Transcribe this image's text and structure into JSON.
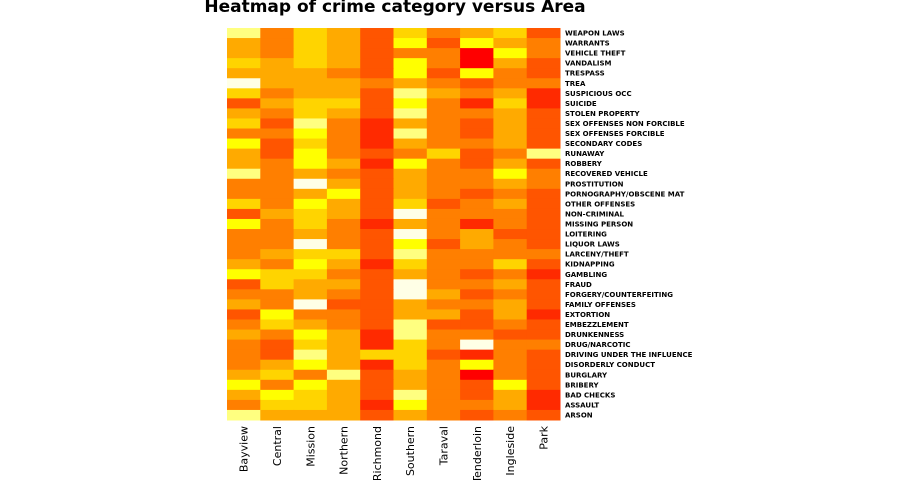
{
  "chart_data": {
    "type": "heatmap",
    "title": "Heatmap of crime category versus Area",
    "xlabel": "",
    "ylabel": "",
    "color_scale": "heat (red = low, yellow/white = high)",
    "colors": [
      "#ff0000",
      "#ff2a00",
      "#ff5500",
      "#ff7f00",
      "#ffaa00",
      "#ffd400",
      "#ffff00",
      "#ffff80",
      "#ffffe6"
    ],
    "columns": [
      "Bayview",
      "Central",
      "Mission",
      "Northern",
      "Richmond",
      "Southern",
      "Taraval",
      "Tenderloin",
      "Ingleside",
      "Park"
    ],
    "rows": [
      "WEAPON LAWS",
      "WARRANTS",
      "VEHICLE THEFT",
      "VANDALISM",
      "TRESPASS",
      "TREA",
      "SUSPICIOUS OCC",
      "SUICIDE",
      "STOLEN PROPERTY",
      "SEX OFFENSES NON FORCIBLE",
      "SEX OFFENSES FORCIBLE",
      "SECONDARY CODES",
      "RUNAWAY",
      "ROBBERY",
      "RECOVERED VEHICLE",
      "PROSTITUTION",
      "PORNOGRAPHY/OBSCENE MAT",
      "OTHER OFFENSES",
      "NON-CRIMINAL",
      "MISSING PERSON",
      "LOITERING",
      "LIQUOR LAWS",
      "LARCENY/THEFT",
      "KIDNAPPING",
      "GAMBLING",
      "FRAUD",
      "FORGERY/COUNTERFEITING",
      "FAMILY OFFENSES",
      "EXTORTION",
      "EMBEZZLEMENT",
      "DRUNKENNESS",
      "DRUG/NARCOTIC",
      "DRIVING UNDER THE INFLUENCE",
      "DISORDERLY CONDUCT",
      "BURGLARY",
      "BRIBERY",
      "BAD CHECKS",
      "ASSAULT",
      "ARSON"
    ],
    "values": [
      [
        7,
        3,
        5,
        4,
        2,
        5,
        3,
        4,
        5,
        2
      ],
      [
        4,
        3,
        5,
        4,
        2,
        6,
        2,
        6,
        4,
        3
      ],
      [
        4,
        3,
        5,
        4,
        2,
        3,
        3,
        0,
        6,
        3
      ],
      [
        5,
        4,
        5,
        4,
        2,
        6,
        3,
        0,
        4,
        2
      ],
      [
        4,
        4,
        4,
        3,
        2,
        6,
        2,
        6,
        3,
        2
      ],
      [
        8,
        4,
        4,
        4,
        3,
        4,
        3,
        2,
        3,
        3
      ],
      [
        5,
        3,
        4,
        4,
        2,
        7,
        4,
        3,
        4,
        1
      ],
      [
        2,
        4,
        5,
        5,
        2,
        6,
        3,
        1,
        5,
        1
      ],
      [
        4,
        3,
        5,
        4,
        2,
        7,
        3,
        3,
        4,
        2
      ],
      [
        5,
        2,
        7,
        3,
        1,
        4,
        3,
        2,
        4,
        2
      ],
      [
        3,
        3,
        6,
        3,
        1,
        7,
        3,
        2,
        4,
        2
      ],
      [
        6,
        2,
        5,
        3,
        1,
        4,
        3,
        3,
        4,
        2
      ],
      [
        4,
        2,
        6,
        3,
        2,
        3,
        5,
        2,
        3,
        7
      ],
      [
        4,
        3,
        6,
        4,
        1,
        6,
        3,
        2,
        4,
        2
      ],
      [
        7,
        3,
        4,
        3,
        2,
        4,
        3,
        3,
        6,
        3
      ],
      [
        3,
        3,
        8,
        4,
        2,
        4,
        3,
        3,
        4,
        3
      ],
      [
        3,
        3,
        4,
        6,
        2,
        4,
        3,
        2,
        3,
        2
      ],
      [
        5,
        3,
        6,
        4,
        2,
        5,
        2,
        3,
        4,
        2
      ],
      [
        2,
        4,
        5,
        4,
        2,
        8,
        3,
        3,
        3,
        2
      ],
      [
        6,
        3,
        5,
        3,
        1,
        4,
        3,
        1,
        3,
        2
      ],
      [
        3,
        3,
        4,
        3,
        2,
        8,
        3,
        4,
        2,
        2
      ],
      [
        3,
        3,
        8,
        3,
        2,
        6,
        2,
        4,
        3,
        2
      ],
      [
        3,
        4,
        5,
        5,
        2,
        7,
        3,
        3,
        3,
        3
      ],
      [
        4,
        3,
        6,
        4,
        1,
        5,
        3,
        3,
        5,
        2
      ],
      [
        6,
        5,
        5,
        3,
        2,
        4,
        3,
        2,
        3,
        1
      ],
      [
        2,
        5,
        4,
        4,
        2,
        8,
        3,
        3,
        4,
        2
      ],
      [
        3,
        3,
        4,
        3,
        2,
        8,
        4,
        2,
        3,
        2
      ],
      [
        4,
        3,
        8,
        2,
        2,
        4,
        3,
        3,
        4,
        2
      ],
      [
        2,
        6,
        3,
        3,
        2,
        4,
        4,
        2,
        4,
        1
      ],
      [
        3,
        5,
        4,
        3,
        2,
        7,
        2,
        2,
        3,
        2
      ],
      [
        4,
        3,
        6,
        4,
        1,
        7,
        3,
        3,
        2,
        2
      ],
      [
        3,
        2,
        5,
        4,
        1,
        5,
        3,
        8,
        3,
        3
      ],
      [
        3,
        2,
        7,
        4,
        5,
        5,
        2,
        1,
        3,
        2
      ],
      [
        3,
        4,
        6,
        4,
        1,
        5,
        3,
        6,
        3,
        2
      ],
      [
        4,
        5,
        3,
        7,
        2,
        4,
        3,
        0,
        3,
        2
      ],
      [
        6,
        3,
        6,
        4,
        2,
        4,
        3,
        2,
        6,
        2
      ],
      [
        4,
        6,
        5,
        4,
        2,
        7,
        3,
        2,
        4,
        1
      ],
      [
        3,
        5,
        5,
        4,
        1,
        6,
        3,
        3,
        4,
        1
      ],
      [
        7,
        4,
        4,
        4,
        2,
        4,
        3,
        2,
        3,
        2
      ]
    ]
  }
}
